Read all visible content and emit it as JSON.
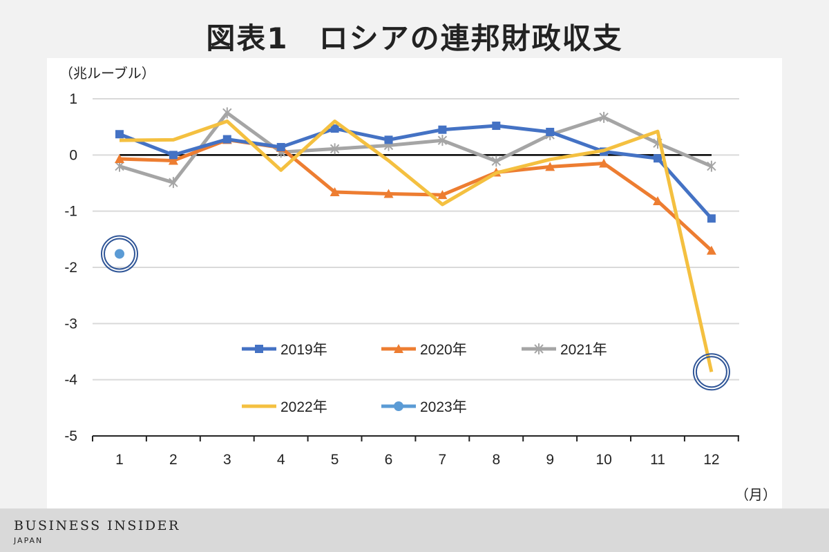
{
  "chart_data": {
    "type": "line",
    "title": "図表1　ロシアの連邦財政収支",
    "ylabel": "（兆ルーブル）",
    "xlabel": "（月）",
    "categories": [
      "1",
      "2",
      "3",
      "4",
      "5",
      "6",
      "7",
      "8",
      "9",
      "10",
      "11",
      "12"
    ],
    "ylim": [
      -5,
      1
    ],
    "yticks": [
      "1",
      "0",
      "-1",
      "-2",
      "-3",
      "-4",
      "-5"
    ],
    "grid": true,
    "legend_position": "inside-bottom",
    "series": [
      {
        "name": "2019年",
        "color": "#4472c4",
        "marker": "square",
        "values": [
          0.37,
          0.0,
          0.28,
          0.14,
          0.47,
          0.27,
          0.45,
          0.52,
          0.41,
          0.06,
          -0.06,
          -1.13
        ]
      },
      {
        "name": "2020年",
        "color": "#ed7d31",
        "marker": "triangle",
        "values": [
          -0.07,
          -0.1,
          0.27,
          0.13,
          -0.66,
          -0.69,
          -0.71,
          -0.31,
          -0.21,
          -0.15,
          -0.82,
          -1.7
        ]
      },
      {
        "name": "2021年",
        "color": "#a5a5a5",
        "marker": "star",
        "values": [
          -0.2,
          -0.49,
          0.75,
          0.05,
          0.11,
          0.17,
          0.26,
          -0.11,
          0.36,
          0.67,
          0.21,
          -0.2
        ]
      },
      {
        "name": "2022年",
        "color": "#f4c040",
        "marker": "none",
        "values": [
          0.26,
          0.27,
          0.6,
          -0.27,
          0.6,
          -0.1,
          -0.88,
          -0.32,
          -0.08,
          0.08,
          0.42,
          -3.86
        ]
      },
      {
        "name": "2023年",
        "color": "#5b9bd5",
        "marker": "circle",
        "values": [
          -1.76,
          null,
          null,
          null,
          null,
          null,
          null,
          null,
          null,
          null,
          null,
          null
        ]
      }
    ],
    "annotations": [
      "circle around 2023年 month 1",
      "circle around 2022年 month 12"
    ]
  },
  "footer": {
    "brand": "BUSINESS INSIDER",
    "sub": "JAPAN"
  }
}
